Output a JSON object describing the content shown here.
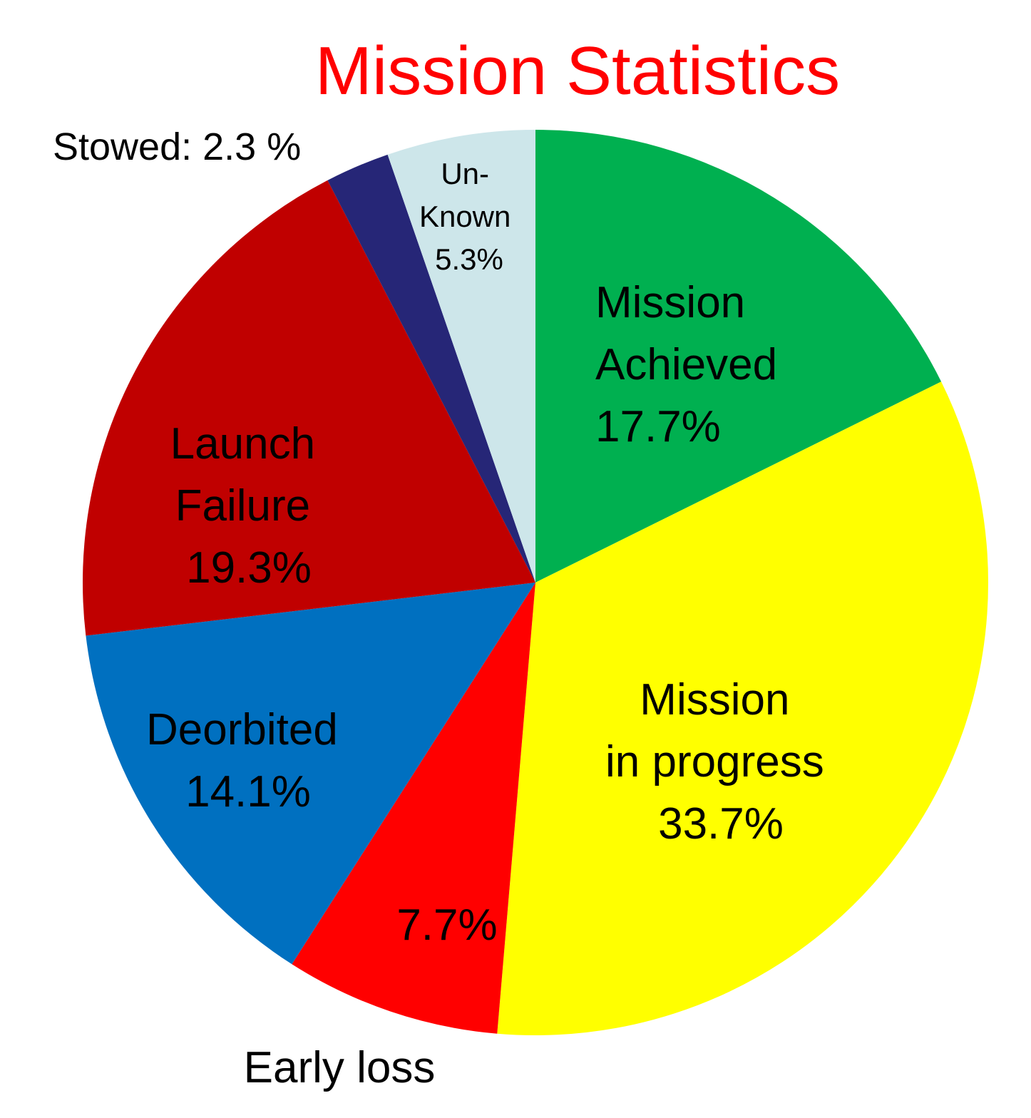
{
  "chart_data": {
    "type": "pie",
    "title": "Mission Statistics",
    "slices": [
      {
        "name": "Mission Achieved",
        "value": 17.7,
        "color": "#00b050",
        "label_lines": [
          "Mission",
          "Achieved",
          "17.7%"
        ]
      },
      {
        "name": "Mission in progress",
        "value": 33.7,
        "color": "#ffff00",
        "label_lines": [
          "Mission",
          "in progress",
          "33.7%"
        ]
      },
      {
        "name": "Early loss",
        "value": 7.7,
        "color": "#ff0000",
        "label_lines": [
          "7.7%"
        ],
        "outside_label": "Early loss"
      },
      {
        "name": "Deorbited",
        "value": 14.1,
        "color": "#0070c0",
        "label_lines": [
          "Deorbited",
          "14.1%"
        ]
      },
      {
        "name": "Launch Failure",
        "value": 19.3,
        "color": "#c00000",
        "label_lines": [
          "Launch",
          "Failure",
          "19.3%"
        ]
      },
      {
        "name": "Stowed",
        "value": 2.3,
        "color": "#262677",
        "outside_label": "Stowed: 2.3 %"
      },
      {
        "name": "Unknown",
        "value": 5.3,
        "color": "#cde6ea",
        "label_lines": [
          "Un-",
          "Known",
          "5.3%"
        ]
      }
    ],
    "start_angle": "12 o'clock",
    "direction": "clockwise",
    "legend": "none"
  }
}
